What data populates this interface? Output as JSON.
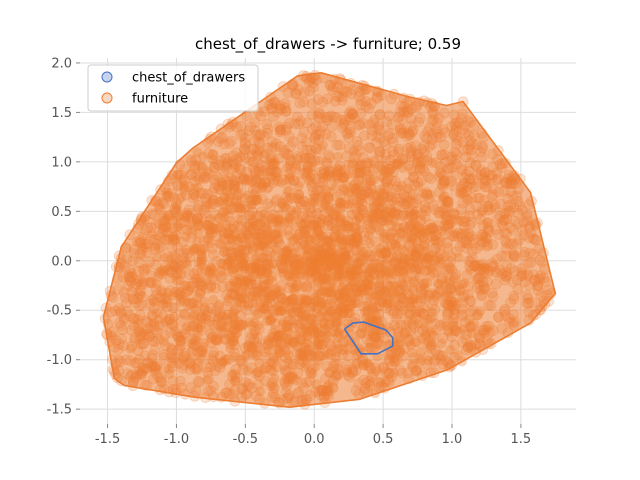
{
  "chart_data": {
    "type": "scatter",
    "title": "chest_of_drawers -> furniture; 0.59",
    "xlabel": "",
    "ylabel": "",
    "xlim": [
      -1.7,
      1.9
    ],
    "ylim": [
      -1.65,
      2.05
    ],
    "x_ticks": [
      "-1.5",
      "-1.0",
      "-0.5",
      "0.0",
      "0.5",
      "1.0",
      "1.5"
    ],
    "y_ticks": [
      "-1.5",
      "-1.0",
      "-0.5",
      "0.0",
      "0.5",
      "1.0",
      "1.5",
      "2.0"
    ],
    "grid": true,
    "legend_position": "top-left",
    "series": [
      {
        "name": "chest_of_drawers",
        "color": "#4472c4",
        "hull": [
          [
            0.22,
            -0.69
          ],
          [
            0.28,
            -0.63
          ],
          [
            0.36,
            -0.62
          ],
          [
            0.52,
            -0.7
          ],
          [
            0.57,
            -0.78
          ],
          [
            0.57,
            -0.86
          ],
          [
            0.46,
            -0.94
          ],
          [
            0.34,
            -0.94
          ],
          [
            0.22,
            -0.69
          ]
        ]
      },
      {
        "name": "furniture",
        "color": "#ed7d31",
        "hull": [
          [
            -1.53,
            -0.57
          ],
          [
            -1.45,
            -1.19
          ],
          [
            -1.38,
            -1.26
          ],
          [
            -0.86,
            -1.38
          ],
          [
            -0.18,
            -1.48
          ],
          [
            0.33,
            -1.4
          ],
          [
            0.97,
            -1.1
          ],
          [
            1.57,
            -0.63
          ],
          [
            1.75,
            -0.33
          ],
          [
            1.57,
            0.69
          ],
          [
            1.08,
            1.61
          ],
          [
            0.96,
            1.57
          ],
          [
            0.68,
            1.66
          ],
          [
            0.05,
            1.9
          ],
          [
            -0.12,
            1.87
          ],
          [
            -0.88,
            1.14
          ],
          [
            -1.0,
            0.99
          ],
          [
            -1.4,
            0.14
          ],
          [
            -1.53,
            -0.57
          ]
        ]
      }
    ]
  }
}
